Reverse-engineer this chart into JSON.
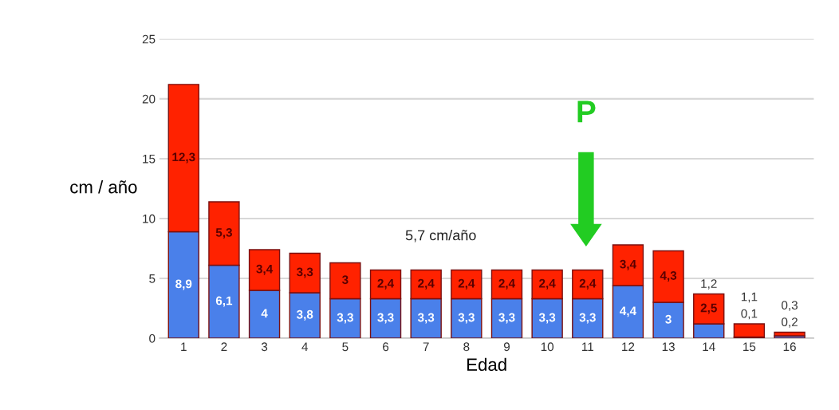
{
  "chart_data": {
    "type": "bar",
    "stacked": true,
    "xlabel": "Edad",
    "ylabel": "cm / año",
    "categories": [
      "1",
      "2",
      "3",
      "4",
      "5",
      "6",
      "7",
      "8",
      "9",
      "10",
      "11",
      "12",
      "13",
      "14",
      "15",
      "16"
    ],
    "series": [
      {
        "color": "#4a80ea",
        "values": [
          8.9,
          6.1,
          4,
          3.8,
          3.3,
          3.3,
          3.3,
          3.3,
          3.3,
          3.3,
          3.3,
          4.4,
          3,
          1.2,
          0.1,
          0.2
        ],
        "value_labels": [
          "8,9",
          "6,1",
          "4",
          "3,8",
          "3,3",
          "3,3",
          "3,3",
          "3,3",
          "3,3",
          "3,3",
          "3,3",
          "4,4",
          "3",
          "1,2",
          "0,1",
          "0,2"
        ]
      },
      {
        "color": "#ff2200",
        "values": [
          12.3,
          5.3,
          3.4,
          3.3,
          3,
          2.4,
          2.4,
          2.4,
          2.4,
          2.4,
          2.4,
          3.4,
          4.3,
          2.5,
          1.1,
          0.3
        ],
        "value_labels": [
          "12,3",
          "5,3",
          "3,4",
          "3,3",
          "3",
          "2,4",
          "2,4",
          "2,4",
          "2,4",
          "2,4",
          "2,4",
          "3,4",
          "4,3",
          "2,5",
          "1,1",
          "0,3"
        ]
      }
    ],
    "ylim": [
      0,
      25
    ],
    "yticks": [
      0,
      5,
      10,
      15,
      20,
      25
    ],
    "grid": "y",
    "annotations": [
      "5,7 cm/año",
      "P"
    ]
  }
}
